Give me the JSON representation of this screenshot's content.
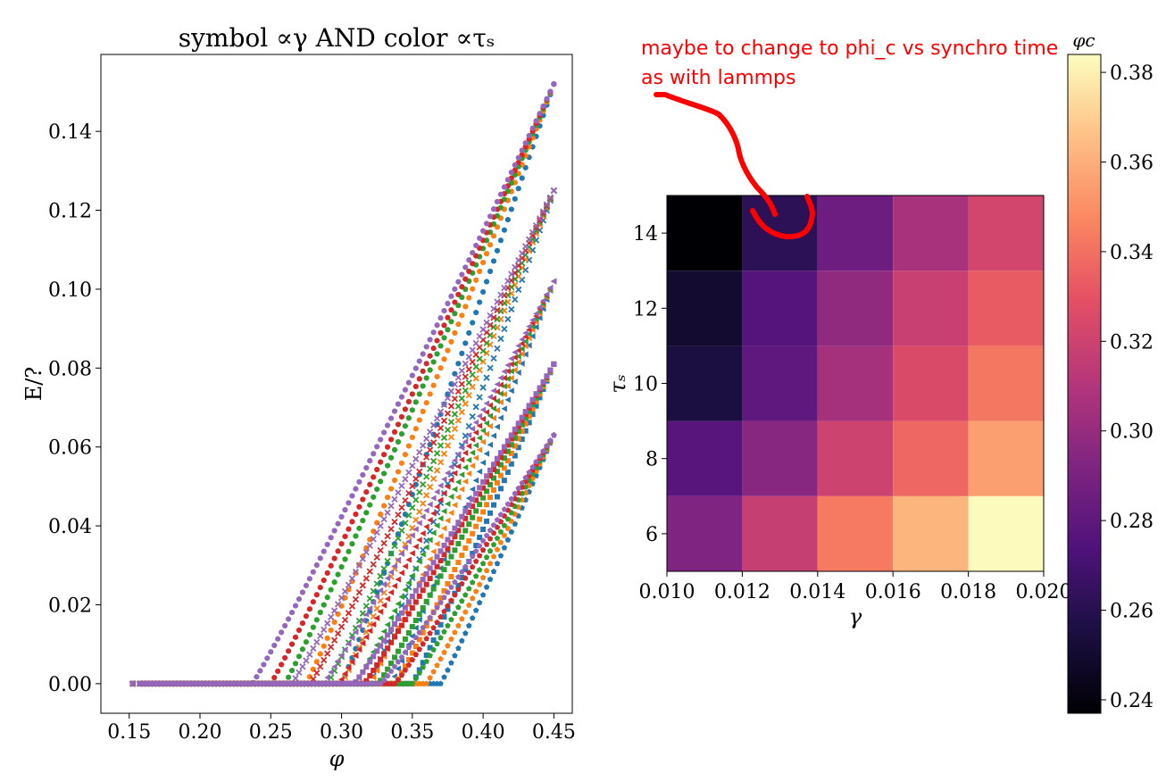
{
  "chart_data": [
    {
      "type": "scatter",
      "title": "symbol ∝γ AND color ∝τₛ",
      "xlabel": "φ",
      "ylabel": "E/?",
      "xlim": [
        0.13,
        0.463
      ],
      "ylim": [
        -0.0075,
        0.1595
      ],
      "xticks": [
        0.15,
        0.2,
        0.25,
        0.3,
        0.35,
        0.4,
        0.45
      ],
      "yticks": [
        0.0,
        0.02,
        0.04,
        0.06,
        0.08,
        0.1,
        0.12,
        0.14
      ],
      "xtick_labels": [
        "0.15",
        "0.20",
        "0.25",
        "0.30",
        "0.35",
        "0.40",
        "0.45"
      ],
      "ytick_labels": [
        "0.00",
        "0.02",
        "0.04",
        "0.06",
        "0.08",
        "0.10",
        "0.12",
        "0.14"
      ],
      "grid": false,
      "series": [
        {
          "marker": "circle",
          "color": "#1f77b4",
          "phi_c": 0.3,
          "phi_max": 0.45,
          "e_max": 0.152
        },
        {
          "marker": "circle",
          "color": "#ff7f0e",
          "phi_c": 0.275,
          "phi_max": 0.45,
          "e_max": 0.152
        },
        {
          "marker": "circle",
          "color": "#2ca02c",
          "phi_c": 0.26,
          "phi_max": 0.45,
          "e_max": 0.152
        },
        {
          "marker": "circle",
          "color": "#d62728",
          "phi_c": 0.25,
          "phi_max": 0.45,
          "e_max": 0.152
        },
        {
          "marker": "circle",
          "color": "#9467bd",
          "phi_c": 0.237,
          "phi_max": 0.45,
          "e_max": 0.152
        },
        {
          "marker": "x",
          "color": "#1f77b4",
          "phi_c": 0.32,
          "phi_max": 0.45,
          "e_max": 0.125
        },
        {
          "marker": "x",
          "color": "#ff7f0e",
          "phi_c": 0.3,
          "phi_max": 0.45,
          "e_max": 0.125
        },
        {
          "marker": "x",
          "color": "#2ca02c",
          "phi_c": 0.29,
          "phi_max": 0.45,
          "e_max": 0.125
        },
        {
          "marker": "x",
          "color": "#d62728",
          "phi_c": 0.278,
          "phi_max": 0.45,
          "e_max": 0.125
        },
        {
          "marker": "x",
          "color": "#9467bd",
          "phi_c": 0.265,
          "phi_max": 0.45,
          "e_max": 0.125
        },
        {
          "marker": "triangle",
          "color": "#1f77b4",
          "phi_c": 0.335,
          "phi_max": 0.45,
          "e_max": 0.102
        },
        {
          "marker": "triangle",
          "color": "#ff7f0e",
          "phi_c": 0.32,
          "phi_max": 0.45,
          "e_max": 0.102
        },
        {
          "marker": "triangle",
          "color": "#2ca02c",
          "phi_c": 0.31,
          "phi_max": 0.45,
          "e_max": 0.102
        },
        {
          "marker": "triangle",
          "color": "#d62728",
          "phi_c": 0.298,
          "phi_max": 0.45,
          "e_max": 0.102
        },
        {
          "marker": "triangle",
          "color": "#9467bd",
          "phi_c": 0.287,
          "phi_max": 0.45,
          "e_max": 0.102
        },
        {
          "marker": "square",
          "color": "#1f77b4",
          "phi_c": 0.35,
          "phi_max": 0.45,
          "e_max": 0.081
        },
        {
          "marker": "square",
          "color": "#ff7f0e",
          "phi_c": 0.338,
          "phi_max": 0.45,
          "e_max": 0.081
        },
        {
          "marker": "square",
          "color": "#2ca02c",
          "phi_c": 0.326,
          "phi_max": 0.45,
          "e_max": 0.081
        },
        {
          "marker": "square",
          "color": "#d62728",
          "phi_c": 0.316,
          "phi_max": 0.45,
          "e_max": 0.081
        },
        {
          "marker": "square",
          "color": "#9467bd",
          "phi_c": 0.309,
          "phi_max": 0.45,
          "e_max": 0.081
        },
        {
          "marker": "pentagon",
          "color": "#1f77b4",
          "phi_c": 0.37,
          "phi_max": 0.45,
          "e_max": 0.063
        },
        {
          "marker": "pentagon",
          "color": "#ff7f0e",
          "phi_c": 0.36,
          "phi_max": 0.45,
          "e_max": 0.063
        },
        {
          "marker": "pentagon",
          "color": "#2ca02c",
          "phi_c": 0.35,
          "phi_max": 0.45,
          "e_max": 0.063
        },
        {
          "marker": "pentagon",
          "color": "#d62728",
          "phi_c": 0.338,
          "phi_max": 0.45,
          "e_max": 0.063
        },
        {
          "marker": "pentagon",
          "color": "#9467bd",
          "phi_c": 0.328,
          "phi_max": 0.45,
          "e_max": 0.063
        }
      ]
    },
    {
      "type": "heatmap",
      "xlabel": "γ",
      "ylabel": "τₛ",
      "x_edges": [
        0.01,
        0.012,
        0.014,
        0.016,
        0.018,
        0.02
      ],
      "y_edges": [
        5,
        7,
        9,
        11,
        13,
        15
      ],
      "xtick_labels": [
        "0.010",
        "0.012",
        "0.014",
        "0.016",
        "0.018",
        "0.020"
      ],
      "xticks": [
        0.01,
        0.012,
        0.014,
        0.016,
        0.018,
        0.02
      ],
      "ytick_labels": [
        "6",
        "8",
        "10",
        "12",
        "14"
      ],
      "yticks": [
        6,
        8,
        10,
        12,
        14
      ],
      "values": [
        [
          0.292,
          0.317,
          0.343,
          0.362,
          0.383
        ],
        [
          0.277,
          0.295,
          0.32,
          0.337,
          0.355
        ],
        [
          0.255,
          0.28,
          0.305,
          0.325,
          0.342
        ],
        [
          0.25,
          0.276,
          0.298,
          0.318,
          0.333
        ],
        [
          0.237,
          0.262,
          0.285,
          0.306,
          0.322
        ]
      ],
      "colormap": "magma",
      "colorbar": {
        "label": "φc",
        "range": [
          0.237,
          0.384
        ],
        "ticks": [
          0.24,
          0.26,
          0.28,
          0.3,
          0.32,
          0.34,
          0.36,
          0.38
        ],
        "tick_labels": [
          "0.24",
          "0.26",
          "0.28",
          "0.30",
          "0.32",
          "0.34",
          "0.36",
          "0.38"
        ]
      }
    }
  ],
  "annotation": {
    "line1": "maybe to change to phi_c vs synchro time",
    "line2": "as with lammps",
    "color": "#ff0000"
  }
}
